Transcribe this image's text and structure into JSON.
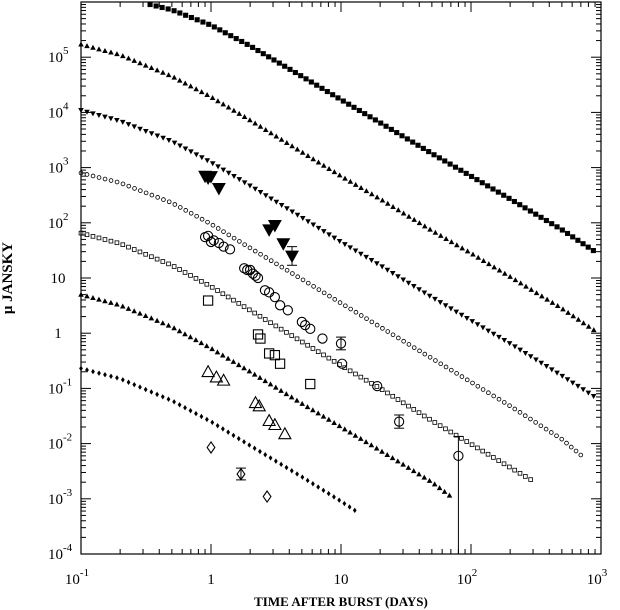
{
  "chart_data": {
    "type": "scatter",
    "xlabel": "TIME AFTER BURST (DAYS)",
    "ylabel": "μ JANSKY",
    "xscale": "log",
    "yscale": "log",
    "xlim": [
      0.1,
      1000
    ],
    "ylim": [
      0.0001,
      1000000
    ],
    "grid": false,
    "x_ticks": [
      {
        "value": 0.1,
        "base": "10",
        "exp": "-1"
      },
      {
        "value": 1,
        "base": "1",
        "exp": ""
      },
      {
        "value": 10,
        "base": "10",
        "exp": ""
      },
      {
        "value": 100,
        "base": "10",
        "exp": "2"
      },
      {
        "value": 1000,
        "base": "10",
        "exp": "3"
      }
    ],
    "y_ticks": [
      {
        "value": 0.0001,
        "base": "10",
        "exp": "-4"
      },
      {
        "value": 0.001,
        "base": "10",
        "exp": "-3"
      },
      {
        "value": 0.01,
        "base": "10",
        "exp": "-2"
      },
      {
        "value": 0.1,
        "base": "10",
        "exp": "-1"
      },
      {
        "value": 1,
        "base": "1",
        "exp": ""
      },
      {
        "value": 10,
        "base": "10",
        "exp": ""
      },
      {
        "value": 100,
        "base": "10",
        "exp": "2"
      },
      {
        "value": 1000,
        "base": "10",
        "exp": "3"
      },
      {
        "value": 10000,
        "base": "10",
        "exp": "4"
      },
      {
        "value": 100000,
        "base": "10",
        "exp": "5"
      }
    ],
    "model_curves": [
      {
        "marker": "square-filled",
        "points": [
          [
            0.34,
            900000
          ],
          [
            0.5,
            720000
          ],
          [
            1,
            380000
          ],
          [
            2,
            160000
          ],
          [
            5,
            45000
          ],
          [
            10,
            17000
          ],
          [
            20,
            6500
          ],
          [
            50,
            1800
          ],
          [
            100,
            700
          ],
          [
            200,
            270
          ],
          [
            500,
            75
          ],
          [
            900,
            30
          ]
        ]
      },
      {
        "marker": "triangle-up-small",
        "points": [
          [
            0.1,
            170000
          ],
          [
            0.2,
            110000
          ],
          [
            0.5,
            45000
          ],
          [
            1,
            19000
          ],
          [
            2,
            7200
          ],
          [
            5,
            1900
          ],
          [
            10,
            700
          ],
          [
            20,
            270
          ],
          [
            50,
            72
          ],
          [
            100,
            28
          ],
          [
            200,
            10.5
          ],
          [
            500,
            2.8
          ],
          [
            900,
            1.1
          ]
        ]
      },
      {
        "marker": "triangle-down-small",
        "points": [
          [
            0.1,
            11000
          ],
          [
            0.2,
            7000
          ],
          [
            0.5,
            3000
          ],
          [
            1,
            1250
          ],
          [
            2,
            470
          ],
          [
            5,
            125
          ],
          [
            10,
            45
          ],
          [
            20,
            17
          ],
          [
            50,
            4.5
          ],
          [
            100,
            1.7
          ],
          [
            200,
            0.65
          ],
          [
            500,
            0.17
          ],
          [
            900,
            0.07
          ]
        ]
      },
      {
        "marker": "circle-small",
        "points": [
          [
            0.1,
            800
          ],
          [
            0.2,
            530
          ],
          [
            0.5,
            230
          ],
          [
            1,
            95
          ],
          [
            2,
            35
          ],
          [
            5,
            9.5
          ],
          [
            10,
            3.5
          ],
          [
            20,
            1.3
          ],
          [
            50,
            0.35
          ],
          [
            100,
            0.13
          ],
          [
            200,
            0.048
          ],
          [
            500,
            0.012
          ],
          [
            700,
            0.0062
          ]
        ]
      },
      {
        "marker": "square-open-small",
        "points": [
          [
            0.1,
            65
          ],
          [
            0.2,
            42
          ],
          [
            0.5,
            17
          ],
          [
            1,
            7
          ],
          [
            2,
            2.6
          ],
          [
            5,
            0.7
          ],
          [
            10,
            0.26
          ],
          [
            20,
            0.1
          ],
          [
            50,
            0.026
          ],
          [
            100,
            0.0098
          ],
          [
            200,
            0.0037
          ],
          [
            300,
            0.0021
          ]
        ]
      },
      {
        "marker": "triangle-up-filled-small",
        "points": [
          [
            0.1,
            5
          ],
          [
            0.2,
            3.2
          ],
          [
            0.5,
            1.3
          ],
          [
            1,
            0.53
          ],
          [
            2,
            0.2
          ],
          [
            5,
            0.053
          ],
          [
            10,
            0.02
          ],
          [
            20,
            0.0075
          ],
          [
            50,
            0.002
          ],
          [
            70,
            0.0011
          ]
        ]
      },
      {
        "marker": "diamond-filled-small",
        "points": [
          [
            0.1,
            0.23
          ],
          [
            0.2,
            0.15
          ],
          [
            0.5,
            0.06
          ],
          [
            1,
            0.025
          ],
          [
            2,
            0.0092
          ],
          [
            5,
            0.0025
          ],
          [
            10,
            0.0009
          ],
          [
            13,
            0.0006
          ]
        ]
      }
    ],
    "observed_series": [
      {
        "marker": "triangle-down-filled",
        "points": [
          {
            "x": 0.9,
            "y": 700
          },
          {
            "x": 0.95,
            "y": 650
          },
          {
            "x": 1.0,
            "y": 690
          },
          {
            "x": 1.15,
            "y": 420
          },
          {
            "x": 2.8,
            "y": 75
          },
          {
            "x": 3.1,
            "y": 90
          },
          {
            "x": 3.6,
            "y": 42
          },
          {
            "x": 4.2,
            "y": 25,
            "err": [
              17,
              37
            ]
          }
        ]
      },
      {
        "marker": "circle-open",
        "points": [
          {
            "x": 0.9,
            "y": 55
          },
          {
            "x": 0.95,
            "y": 58
          },
          {
            "x": 1.0,
            "y": 45
          },
          {
            "x": 1.05,
            "y": 48
          },
          {
            "x": 1.15,
            "y": 43
          },
          {
            "x": 1.25,
            "y": 37
          },
          {
            "x": 1.4,
            "y": 33
          },
          {
            "x": 1.8,
            "y": 15
          },
          {
            "x": 1.9,
            "y": 14
          },
          {
            "x": 2.0,
            "y": 14
          },
          {
            "x": 2.1,
            "y": 12
          },
          {
            "x": 2.2,
            "y": 11
          },
          {
            "x": 2.3,
            "y": 10
          },
          {
            "x": 2.6,
            "y": 6
          },
          {
            "x": 2.8,
            "y": 5.5
          },
          {
            "x": 3.1,
            "y": 4.5
          },
          {
            "x": 3.4,
            "y": 3.2
          },
          {
            "x": 3.9,
            "y": 2.6
          },
          {
            "x": 5.0,
            "y": 1.6
          },
          {
            "x": 5.3,
            "y": 1.4
          },
          {
            "x": 5.8,
            "y": 1.2
          },
          {
            "x": 7.2,
            "y": 0.8
          },
          {
            "x": 10,
            "y": 0.65,
            "err": [
              0.5,
              0.85
            ]
          },
          {
            "x": 10.2,
            "y": 0.28
          },
          {
            "x": 19,
            "y": 0.11
          },
          {
            "x": 28,
            "y": 0.025,
            "err": [
              0.019,
              0.033
            ]
          },
          {
            "x": 80,
            "y": 0.006,
            "err": [
              0.0001,
              0.0135
            ]
          }
        ]
      },
      {
        "marker": "square-open",
        "points": [
          {
            "x": 0.95,
            "y": 3.9
          },
          {
            "x": 2.3,
            "y": 0.95
          },
          {
            "x": 2.4,
            "y": 0.8
          },
          {
            "x": 2.8,
            "y": 0.43
          },
          {
            "x": 3.1,
            "y": 0.4
          },
          {
            "x": 3.4,
            "y": 0.28
          },
          {
            "x": 5.8,
            "y": 0.12
          }
        ]
      },
      {
        "marker": "triangle-up-open",
        "points": [
          {
            "x": 0.95,
            "y": 0.2
          },
          {
            "x": 1.1,
            "y": 0.16
          },
          {
            "x": 1.25,
            "y": 0.14
          },
          {
            "x": 2.2,
            "y": 0.055
          },
          {
            "x": 2.35,
            "y": 0.048
          },
          {
            "x": 2.8,
            "y": 0.026
          },
          {
            "x": 3.1,
            "y": 0.022
          },
          {
            "x": 3.7,
            "y": 0.015
          }
        ]
      },
      {
        "marker": "diamond-open",
        "points": [
          {
            "x": 1.0,
            "y": 0.0085
          },
          {
            "x": 1.7,
            "y": 0.0028,
            "err": [
              0.0022,
              0.0036
            ]
          },
          {
            "x": 2.7,
            "y": 0.0011
          }
        ]
      }
    ]
  }
}
